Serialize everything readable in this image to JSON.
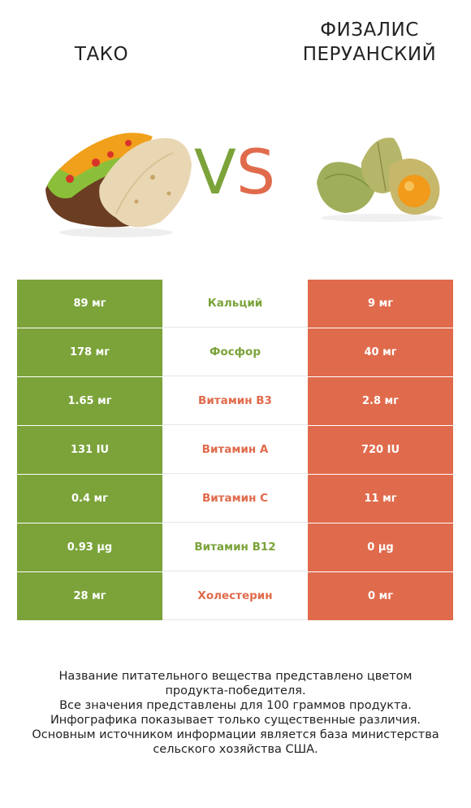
{
  "header": {
    "left_title": "ТАКО",
    "right_title_line1": "ФИЗАЛИС",
    "right_title_line2": "ПЕРУАНСКИЙ",
    "vs_v": "V",
    "vs_s": "S"
  },
  "colors": {
    "left": "#7ba33a",
    "right": "#e06b4c"
  },
  "rows": [
    {
      "left": "89 мг",
      "nutrient": "Кальций",
      "right": "9 мг",
      "winner": "left"
    },
    {
      "left": "178 мг",
      "nutrient": "Фосфор",
      "right": "40 мг",
      "winner": "left"
    },
    {
      "left": "1.65 мг",
      "nutrient": "Витамин B3",
      "right": "2.8 мг",
      "winner": "right"
    },
    {
      "left": "131 IU",
      "nutrient": "Витамин A",
      "right": "720 IU",
      "winner": "right"
    },
    {
      "left": "0.4 мг",
      "nutrient": "Витамин C",
      "right": "11 мг",
      "winner": "right"
    },
    {
      "left": "0.93 µg",
      "nutrient": "Витамин B12",
      "right": "0 µg",
      "winner": "left"
    },
    {
      "left": "28 мг",
      "nutrient": "Холестерин",
      "right": "0 мг",
      "winner": "right"
    }
  ],
  "footer": {
    "line1": "Название питательного вещества представлено цветом",
    "line2": "продукта-победителя.",
    "line3": "Все значения представлены для 100 граммов продукта.",
    "line4": "Инфографика показывает только существенные различия.",
    "line5": "Основным источником информации является база министерства",
    "line6": "сельского хозяйства США."
  }
}
